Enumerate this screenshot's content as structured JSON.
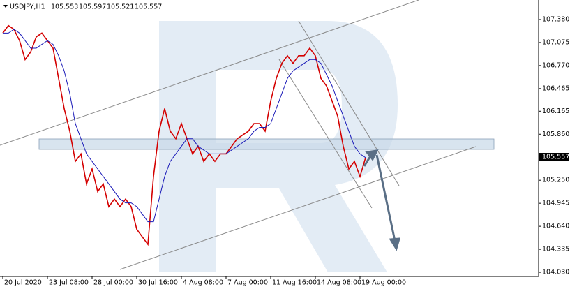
{
  "chart_data": {
    "type": "line",
    "symbol": "USDJPY,H1",
    "ohlc": [
      105.553,
      105.597,
      105.521,
      105.557
    ],
    "last_price": 105.557,
    "x": [
      0,
      1,
      2,
      3,
      4,
      5,
      6,
      7,
      8,
      9,
      10,
      11,
      12,
      13,
      14,
      15,
      16,
      17,
      18,
      19,
      20,
      21,
      22,
      23,
      24,
      25,
      26,
      27,
      28,
      29,
      30,
      31,
      32,
      33,
      34,
      35,
      36,
      37,
      38,
      39,
      40,
      41,
      42,
      43,
      44,
      45,
      46,
      47,
      48,
      49,
      50,
      51,
      52,
      53,
      54,
      55,
      56,
      57,
      58,
      59,
      60,
      61,
      62,
      63,
      64,
      65
    ],
    "series": [
      {
        "color": "#d40000",
        "values": [
          107.2,
          107.3,
          107.25,
          107.1,
          106.85,
          106.95,
          107.15,
          107.2,
          107.1,
          107.0,
          106.6,
          106.2,
          105.9,
          105.5,
          105.6,
          105.2,
          105.4,
          105.1,
          105.2,
          104.9,
          105.0,
          104.9,
          105.0,
          104.9,
          104.6,
          104.5,
          104.4,
          105.3,
          105.9,
          106.2,
          105.9,
          105.8,
          106.0,
          105.8,
          105.6,
          105.7,
          105.5,
          105.6,
          105.5,
          105.6,
          105.6,
          105.7,
          105.8,
          105.85,
          105.9,
          106.0,
          106.0,
          105.9,
          106.3,
          106.6,
          106.8,
          106.9,
          106.8,
          106.9,
          106.9,
          107.0,
          106.9,
          106.6,
          106.5,
          106.3,
          106.1,
          105.7,
          105.4,
          105.5,
          105.3,
          105.55
        ]
      },
      {
        "color": "#1a1ab8",
        "values": [
          107.2,
          107.2,
          107.25,
          107.2,
          107.1,
          107.0,
          107.0,
          107.05,
          107.1,
          107.05,
          106.9,
          106.7,
          106.4,
          106.0,
          105.8,
          105.6,
          105.5,
          105.4,
          105.3,
          105.2,
          105.1,
          105.0,
          104.95,
          104.95,
          104.9,
          104.8,
          104.7,
          104.7,
          105.0,
          105.3,
          105.5,
          105.6,
          105.7,
          105.8,
          105.8,
          105.7,
          105.65,
          105.6,
          105.6,
          105.6,
          105.6,
          105.65,
          105.7,
          105.75,
          105.8,
          105.9,
          105.95,
          105.95,
          106.0,
          106.2,
          106.4,
          106.6,
          106.7,
          106.75,
          106.8,
          106.85,
          106.85,
          106.8,
          106.65,
          106.5,
          106.3,
          106.1,
          105.9,
          105.7,
          105.6,
          105.55
        ]
      }
    ],
    "xlim": [
      -0.5,
      96
    ],
    "xticks": [
      {
        "value": 0,
        "label": "20 Jul 2020"
      },
      {
        "value": 8,
        "label": "23 Jul 08:00"
      },
      {
        "value": 16,
        "label": "28 Jul 00:00"
      },
      {
        "value": 24,
        "label": "30 Jul 16:00"
      },
      {
        "value": 32,
        "label": "4 Aug 08:00"
      },
      {
        "value": 40,
        "label": "7 Aug 00:00"
      },
      {
        "value": 48,
        "label": "11 Aug 16:00"
      },
      {
        "value": 56,
        "label": "14 Aug 08:00"
      },
      {
        "value": 64,
        "label": "19 Aug 00:00"
      }
    ],
    "ylim": [
      103.975,
      107.611
    ],
    "yticks": [
      {
        "value": 107.38,
        "label": "107.380"
      },
      {
        "value": 107.075,
        "label": "107.075"
      },
      {
        "value": 106.77,
        "label": "106.770"
      },
      {
        "value": 106.465,
        "label": "106.465"
      },
      {
        "value": 106.165,
        "label": "106.165"
      },
      {
        "value": 105.86,
        "label": "105.860"
      },
      {
        "value": 105.25,
        "label": "105.250"
      },
      {
        "value": 104.945,
        "label": "104.945"
      },
      {
        "value": 104.64,
        "label": "104.640"
      },
      {
        "value": 104.335,
        "label": "104.335"
      },
      {
        "value": 104.03,
        "label": "104.030"
      }
    ]
  }
}
